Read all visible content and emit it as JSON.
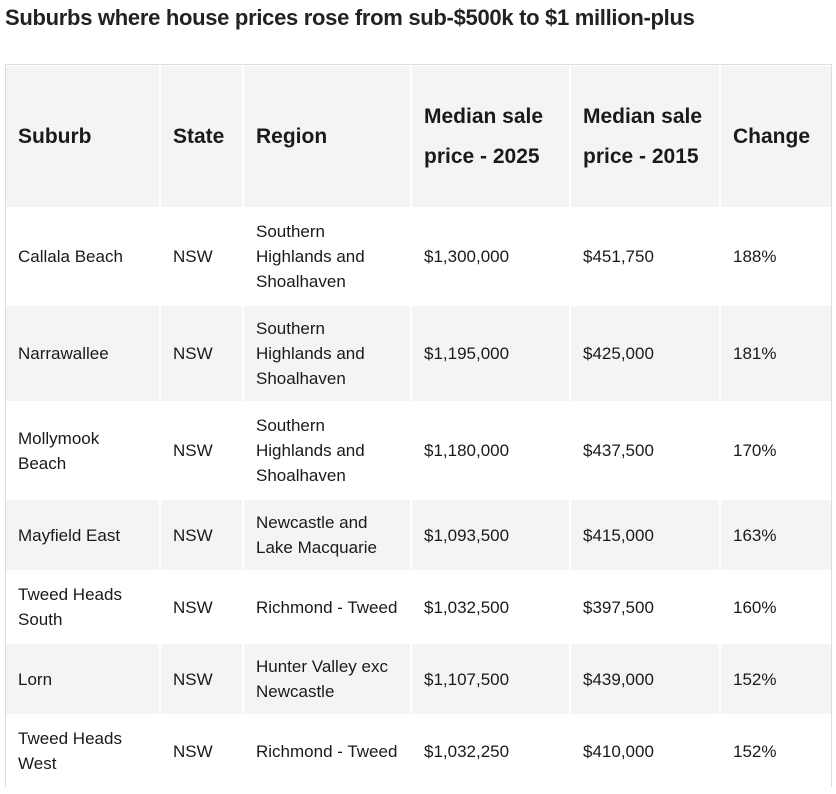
{
  "title": "Suburbs where house prices rose from sub-$500k to $1 million-plus",
  "headers": [
    "Suburb",
    "State",
    "Region",
    "Median sale price - 2025",
    "Median sale price - 2015",
    "Change"
  ],
  "rows": [
    [
      "Callala Beach",
      "NSW",
      "Southern Highlands and Shoalhaven",
      "$1,300,000",
      "$451,750",
      "188%"
    ],
    [
      "Narrawallee",
      "NSW",
      "Southern Highlands and Shoalhaven",
      "$1,195,000",
      "$425,000",
      "181%"
    ],
    [
      "Mollymook Beach",
      "NSW",
      "Southern Highlands and Shoalhaven",
      "$1,180,000",
      "$437,500",
      "170%"
    ],
    [
      "Mayfield East",
      "NSW",
      "Newcastle and Lake Macquarie",
      "$1,093,500",
      "$415,000",
      "163%"
    ],
    [
      "Tweed Heads South",
      "NSW",
      "Richmond - Tweed",
      "$1,032,500",
      "$397,500",
      "160%"
    ],
    [
      "Lorn",
      "NSW",
      "Hunter Valley exc Newcastle",
      "$1,107,500",
      "$439,000",
      "152%"
    ],
    [
      "Tweed Heads West",
      "NSW",
      "Richmond - Tweed",
      "$1,032,250",
      "$410,000",
      "152%"
    ]
  ]
}
